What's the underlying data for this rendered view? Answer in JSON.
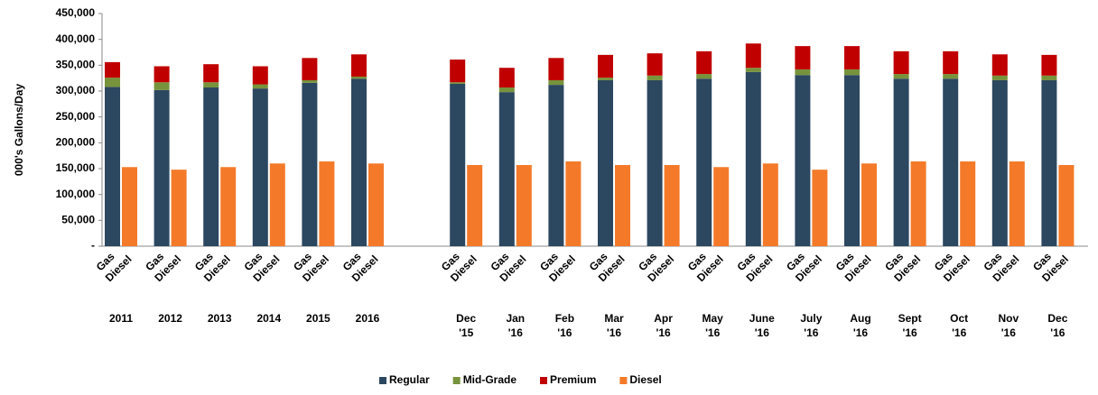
{
  "chart_data": {
    "type": "grouped_stacked_bar",
    "y_label": "000's Gallons/Day",
    "categories": [
      "2011",
      "2012",
      "2013",
      "2014",
      "2015",
      "2016",
      null,
      "Dec\n'15",
      "Jan\n'16",
      "Feb\n'16",
      "Mar\n'16",
      "Apr\n'16",
      "May\n'16",
      "June\n'16",
      "July\n'16",
      "Aug\n'16",
      "Sept\n'16",
      "Oct\n'16",
      "Nov\n'16",
      "Dec\n'16"
    ],
    "bar_labels": [
      "Gas",
      "Diesel"
    ],
    "series": [
      {
        "name": "Regular",
        "color": "#2c4760",
        "stack": "Gas",
        "values": [
          308000,
          302000,
          307000,
          305000,
          316000,
          324000,
          null,
          314000,
          298000,
          312000,
          321000,
          321000,
          324000,
          337000,
          331000,
          331000,
          324000,
          324000,
          321000,
          321000
        ]
      },
      {
        "name": "Mid-Grade",
        "color": "#77933c",
        "stack": "Gas",
        "values": [
          18000,
          15000,
          10000,
          8000,
          5000,
          4000,
          null,
          3000,
          9000,
          9000,
          5000,
          9000,
          9000,
          8000,
          11000,
          11000,
          9000,
          9000,
          9000,
          9000
        ]
      },
      {
        "name": "Premium",
        "color": "#c00000",
        "stack": "Gas",
        "values": [
          30000,
          31000,
          35000,
          35000,
          43000,
          43000,
          null,
          44000,
          38000,
          43000,
          44000,
          43000,
          44000,
          47000,
          45000,
          45000,
          44000,
          44000,
          41000,
          40000
        ]
      },
      {
        "name": "Diesel",
        "color": "#f47a2a",
        "stack": "Diesel",
        "values": [
          153000,
          148000,
          153000,
          160000,
          164000,
          160000,
          null,
          157000,
          157000,
          164000,
          157000,
          157000,
          153000,
          160000,
          148000,
          160000,
          164000,
          164000,
          164000,
          157000
        ]
      }
    ],
    "ylim": [
      0,
      450000
    ],
    "yticks": [
      {
        "value": 0,
        "label": "-"
      },
      {
        "value": 50000,
        "label": "50,000"
      },
      {
        "value": 100000,
        "label": "100,000"
      },
      {
        "value": 150000,
        "label": "150,000"
      },
      {
        "value": 200000,
        "label": "200,000"
      },
      {
        "value": 250000,
        "label": "250,000"
      },
      {
        "value": 300000,
        "label": "300,000"
      },
      {
        "value": 350000,
        "label": "350,000"
      },
      {
        "value": 400000,
        "label": "400,000"
      },
      {
        "value": 450000,
        "label": "450,000"
      }
    ],
    "legend": "bottom"
  }
}
